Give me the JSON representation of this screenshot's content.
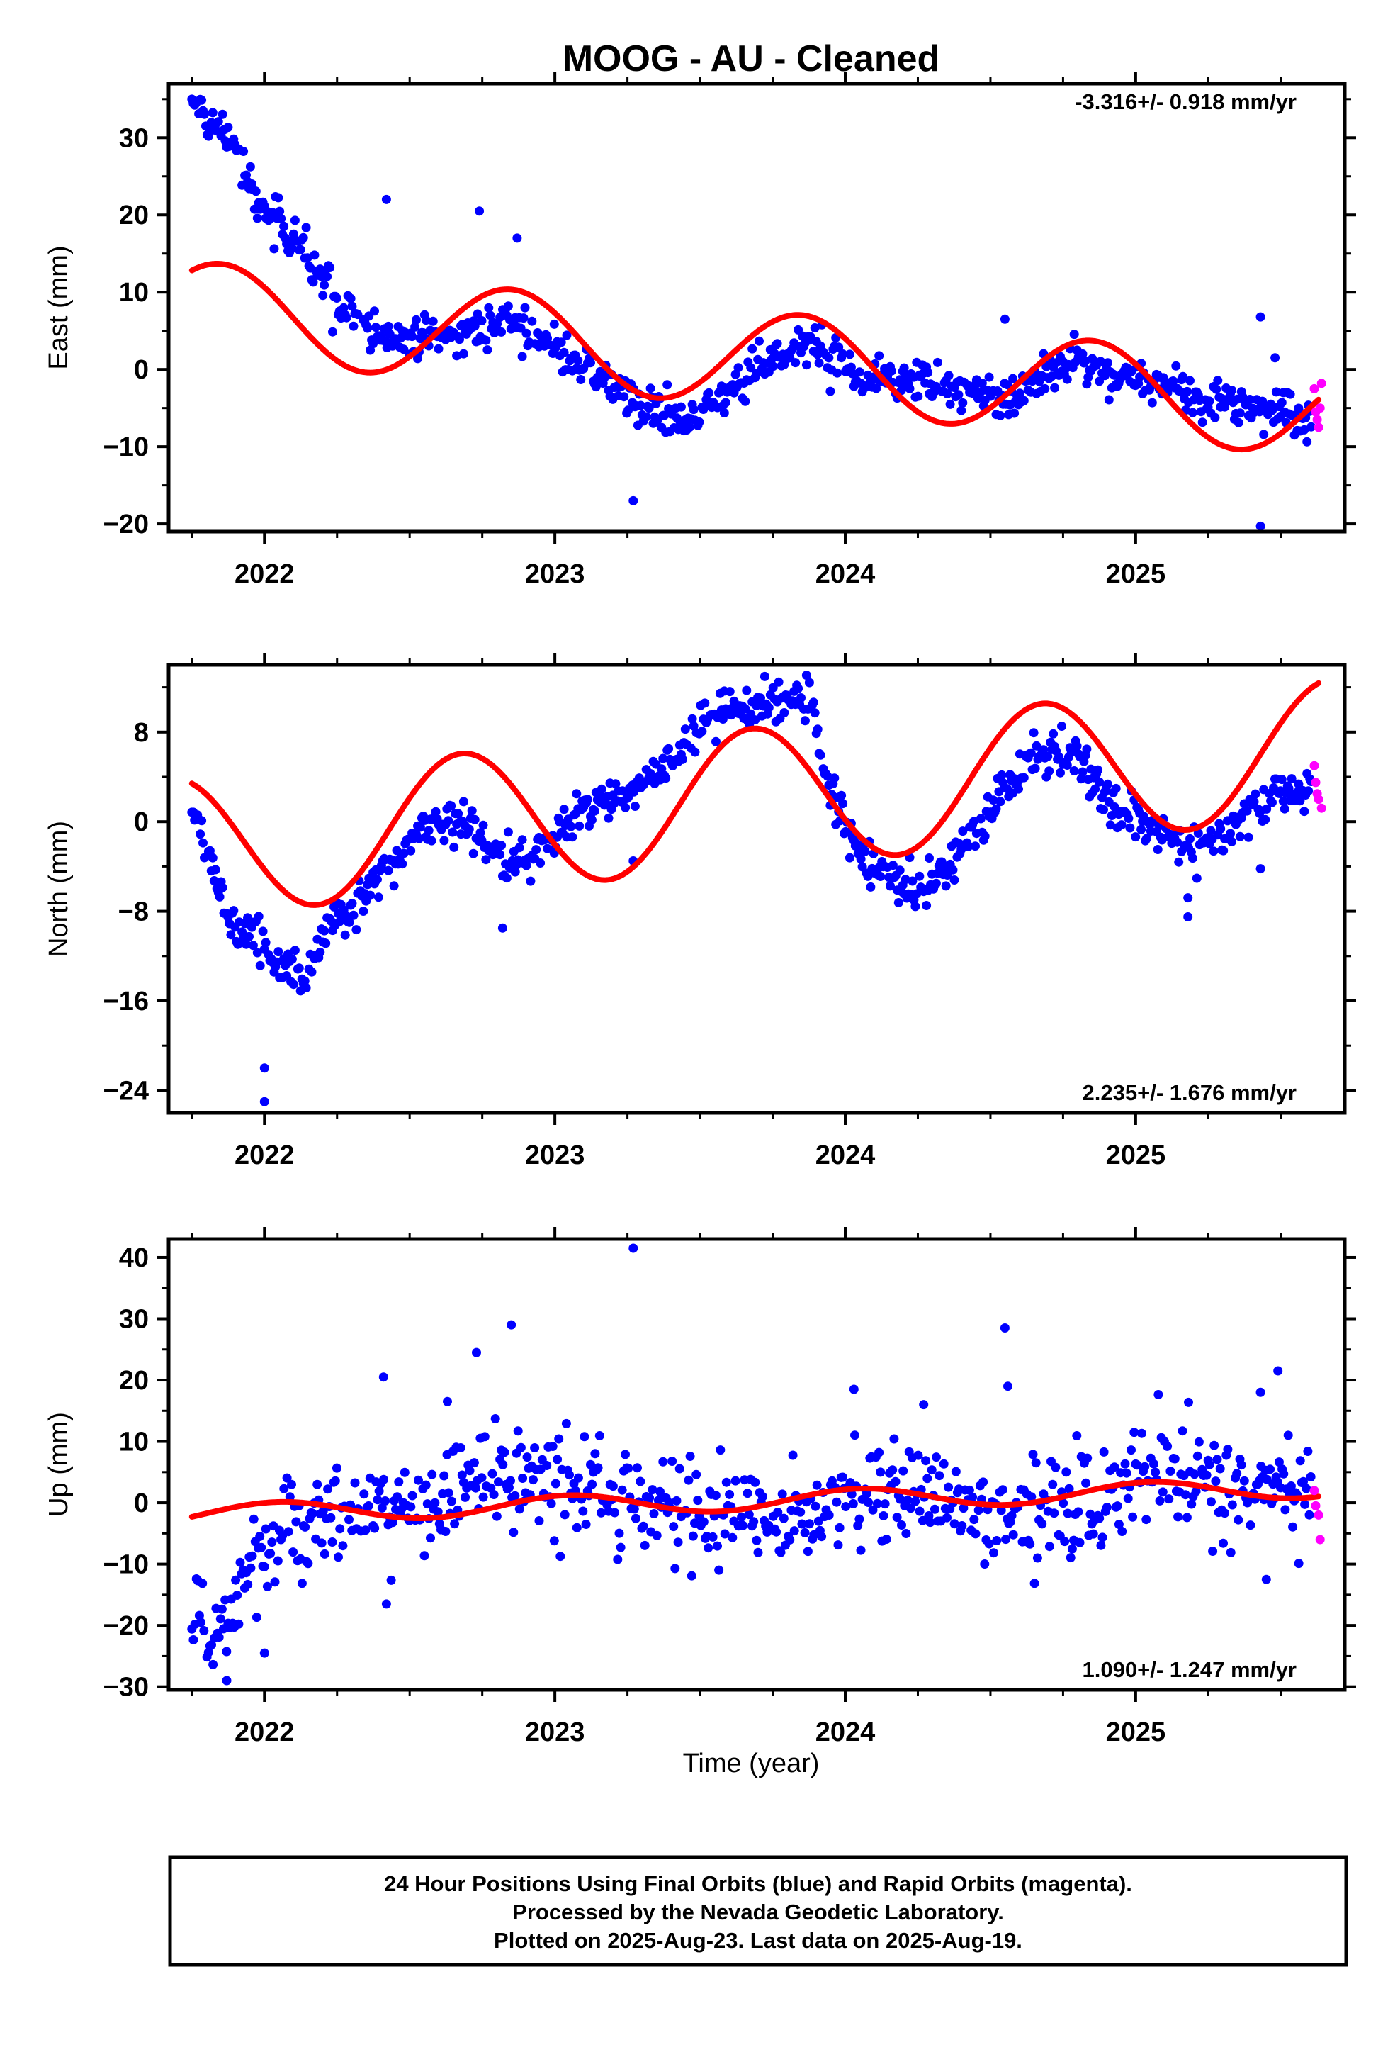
{
  "title": "MOOG  - AU - Cleaned",
  "xlabel": "Time (year)",
  "footer": {
    "line1": "24 Hour Positions Using Final Orbits (blue) and Rapid Orbits (magenta).",
    "line2": "Processed by the Nevada Geodetic Laboratory.",
    "line3": "Plotted on 2025-Aug-23. Last data on 2025-Aug-19."
  },
  "colors": {
    "final": "#0000ff",
    "rapid": "#ff00ff",
    "model": "#ff0000",
    "frame": "#000000"
  },
  "chart_data": [
    {
      "type": "scatter",
      "component": "East",
      "ylabel": "East (mm)",
      "rate_text": "-3.316+/- 0.918 mm/yr",
      "xlim": [
        2021.67,
        2025.72
      ],
      "ylim": [
        -21,
        37
      ],
      "x_ticks": [
        2022,
        2023,
        2024,
        2025
      ],
      "x_tick_labels": [
        "2022",
        "2023",
        "2024",
        "2025"
      ],
      "y_ticks": [
        -20,
        -10,
        0,
        10,
        20,
        30
      ],
      "y_tick_labels": [
        "−20",
        "−10",
        "0",
        "10",
        "20",
        "30"
      ],
      "series": [
        {
          "name": "Final Orbits",
          "anchors": [
            [
              2021.75,
              35
            ],
            [
              2021.8,
              32
            ],
            [
              2021.9,
              29
            ],
            [
              2021.97,
              22
            ],
            [
              2022.05,
              19
            ],
            [
              2022.15,
              14
            ],
            [
              2022.25,
              9
            ],
            [
              2022.4,
              4
            ],
            [
              2022.55,
              4
            ],
            [
              2022.7,
              5
            ],
            [
              2022.85,
              6
            ],
            [
              2023.0,
              3
            ],
            [
              2023.15,
              -1
            ],
            [
              2023.3,
              -5
            ],
            [
              2023.45,
              -7
            ],
            [
              2023.6,
              -3
            ],
            [
              2023.75,
              2
            ],
            [
              2023.85,
              4
            ],
            [
              2023.95,
              1
            ],
            [
              2024.1,
              -1
            ],
            [
              2024.3,
              -2
            ],
            [
              2024.5,
              -4
            ],
            [
              2024.65,
              -2
            ],
            [
              2024.8,
              1
            ],
            [
              2024.9,
              -1
            ],
            [
              2025.1,
              -2
            ],
            [
              2025.25,
              -4
            ],
            [
              2025.45,
              -5
            ],
            [
              2025.62,
              -6
            ]
          ],
          "season_amp": 0,
          "noise": 1.4,
          "step": 0.0048,
          "outliers": [
            [
              2022.42,
              22
            ],
            [
              2022.74,
              20.5
            ],
            [
              2022.87,
              17
            ],
            [
              2023.27,
              -17
            ],
            [
              2024.55,
              6.5
            ],
            [
              2025.43,
              6.8
            ],
            [
              2025.43,
              -20.3
            ],
            [
              2025.48,
              1.5
            ]
          ]
        },
        {
          "name": "Rapid Orbits",
          "points": [
            [
              2025.615,
              -2.5
            ],
            [
              2025.62,
              -5.5
            ],
            [
              2025.625,
              -6.5
            ],
            [
              2025.63,
              -7.5
            ],
            [
              2025.635,
              -5
            ],
            [
              2025.64,
              -1.8
            ]
          ]
        }
      ],
      "model": {
        "intercept": 7.8,
        "rate": -3.316,
        "annual_amp": 6.2,
        "annual_peak": 0.85,
        "t0": 2021.75,
        "t1": 2025.63
      }
    },
    {
      "type": "scatter",
      "component": "North",
      "ylabel": "North (mm)",
      "rate_text": "2.235+/- 1.676 mm/yr",
      "xlim": [
        2021.67,
        2025.72
      ],
      "ylim": [
        -26,
        14
      ],
      "x_ticks": [
        2022,
        2023,
        2024,
        2025
      ],
      "x_tick_labels": [
        "2022",
        "2023",
        "2024",
        "2025"
      ],
      "y_ticks": [
        -24,
        -16,
        -8,
        0,
        8
      ],
      "y_tick_labels": [
        "−24",
        "−16",
        "−8",
        "0",
        "8"
      ],
      "series": [
        {
          "name": "Final Orbits",
          "anchors": [
            [
              2021.75,
              1
            ],
            [
              2021.8,
              -2
            ],
            [
              2021.87,
              -8
            ],
            [
              2021.95,
              -10
            ],
            [
              2022.05,
              -13
            ],
            [
              2022.15,
              -14
            ],
            [
              2022.2,
              -10
            ],
            [
              2022.35,
              -6
            ],
            [
              2022.5,
              -2
            ],
            [
              2022.6,
              0.5
            ],
            [
              2022.7,
              0
            ],
            [
              2022.8,
              -3
            ],
            [
              2022.9,
              -4
            ],
            [
              2023.0,
              -1
            ],
            [
              2023.1,
              1
            ],
            [
              2023.2,
              2
            ],
            [
              2023.35,
              4
            ],
            [
              2023.5,
              9
            ],
            [
              2023.65,
              10
            ],
            [
              2023.8,
              11
            ],
            [
              2023.87,
              11.5
            ],
            [
              2023.95,
              3
            ],
            [
              2024.05,
              -3
            ],
            [
              2024.15,
              -5
            ],
            [
              2024.25,
              -6
            ],
            [
              2024.35,
              -4
            ],
            [
              2024.5,
              1
            ],
            [
              2024.65,
              6
            ],
            [
              2024.8,
              6
            ],
            [
              2024.9,
              2
            ],
            [
              2025.05,
              -1
            ],
            [
              2025.2,
              -2
            ],
            [
              2025.3,
              -1
            ],
            [
              2025.45,
              2
            ],
            [
              2025.62,
              3
            ]
          ],
          "season_amp": 0,
          "noise": 1.0,
          "step": 0.0048,
          "outliers": [
            [
              2022.0,
              -22
            ],
            [
              2022.0,
              -25
            ],
            [
              2022.82,
              -9.5
            ],
            [
              2023.27,
              -3.5
            ],
            [
              2025.18,
              -8.5
            ],
            [
              2025.43,
              -4.2
            ],
            [
              2025.18,
              -6.8
            ]
          ]
        },
        {
          "name": "Rapid Orbits",
          "points": [
            [
              2025.615,
              5
            ],
            [
              2025.62,
              3.5
            ],
            [
              2025.625,
              2.5
            ],
            [
              2025.63,
              2
            ],
            [
              2025.64,
              1.2
            ]
          ]
        }
      ],
      "model": {
        "intercept": -2.2,
        "rate": 2.235,
        "annual_amp": 6.2,
        "annual_peak": 0.68,
        "t0": 2021.75,
        "t1": 2025.63
      }
    },
    {
      "type": "scatter",
      "component": "Up",
      "ylabel": "Up (mm)",
      "rate_text": "1.090+/- 1.247 mm/yr",
      "xlim": [
        2021.67,
        2025.72
      ],
      "ylim": [
        -30.5,
        43
      ],
      "x_ticks": [
        2022,
        2023,
        2024,
        2025
      ],
      "x_tick_labels": [
        "2022",
        "2023",
        "2024",
        "2025"
      ],
      "y_ticks": [
        -30,
        -20,
        -10,
        0,
        10,
        20,
        30,
        40
      ],
      "y_tick_labels": [
        "−30",
        "−20",
        "−10",
        "0",
        "10",
        "20",
        "30",
        "40"
      ],
      "series": [
        {
          "name": "Final Orbits",
          "anchors": [
            [
              2021.75,
              -18
            ],
            [
              2021.85,
              -20
            ],
            [
              2021.95,
              -12
            ],
            [
              2022.05,
              -6
            ],
            [
              2022.2,
              -2
            ],
            [
              2022.4,
              -1
            ],
            [
              2022.6,
              1
            ],
            [
              2022.8,
              4
            ],
            [
              2022.95,
              5
            ],
            [
              2023.1,
              3
            ],
            [
              2023.3,
              0
            ],
            [
              2023.5,
              -1
            ],
            [
              2023.7,
              -2
            ],
            [
              2023.85,
              -3
            ],
            [
              2024.0,
              1
            ],
            [
              2024.1,
              3
            ],
            [
              2024.3,
              0
            ],
            [
              2024.5,
              -2
            ],
            [
              2024.7,
              -1
            ],
            [
              2024.85,
              -1
            ],
            [
              2025.0,
              5
            ],
            [
              2025.15,
              3
            ],
            [
              2025.35,
              1
            ],
            [
              2025.5,
              2
            ],
            [
              2025.62,
              1
            ]
          ],
          "season_amp": 0,
          "noise": 4.2,
          "step": 0.0052,
          "outliers": [
            [
              2021.87,
              -29
            ],
            [
              2022.0,
              -24.5
            ],
            [
              2022.41,
              20.5
            ],
            [
              2022.42,
              -16.5
            ],
            [
              2022.63,
              16.5
            ],
            [
              2022.73,
              24.5
            ],
            [
              2022.85,
              29
            ],
            [
              2023.27,
              41.5
            ],
            [
              2024.03,
              18.5
            ],
            [
              2024.27,
              16
            ],
            [
              2024.55,
              28.5
            ],
            [
              2024.56,
              19
            ],
            [
              2025.45,
              -12.5
            ],
            [
              2025.49,
              21.5
            ],
            [
              2025.43,
              18
            ]
          ]
        },
        {
          "name": "Rapid Orbits",
          "points": [
            [
              2025.615,
              2
            ],
            [
              2025.62,
              -0.5
            ],
            [
              2025.63,
              -2
            ],
            [
              2025.635,
              -6
            ]
          ]
        }
      ],
      "model": {
        "intercept": -1.8,
        "rate": 1.09,
        "annual_amp": 1.6,
        "annual_peak": 0.05,
        "t0": 2021.75,
        "t1": 2025.63
      }
    }
  ]
}
